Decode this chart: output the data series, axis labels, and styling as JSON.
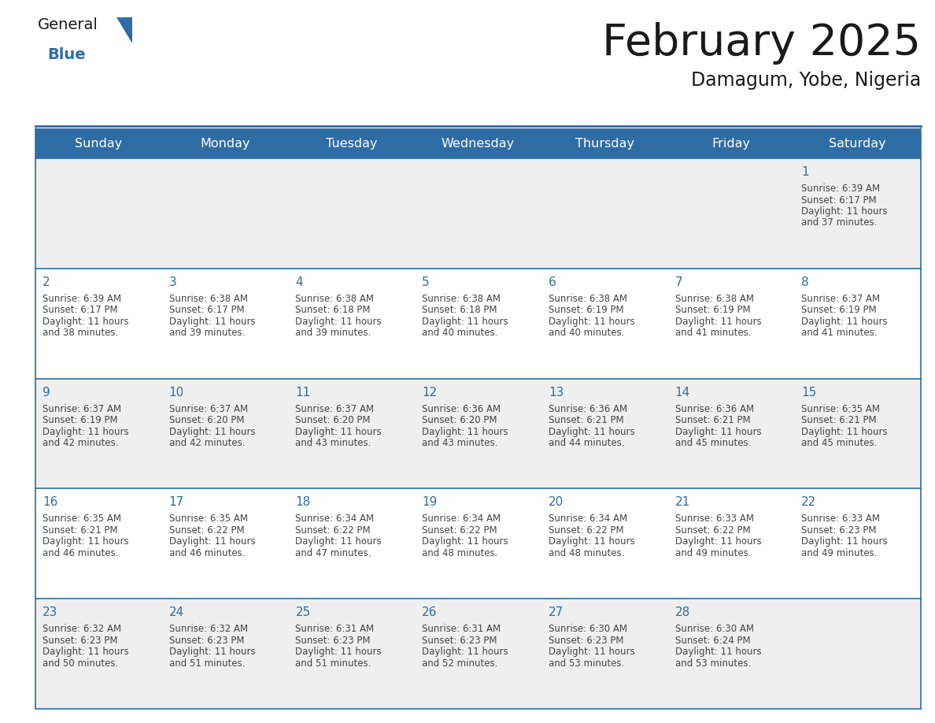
{
  "title": "February 2025",
  "subtitle": "Damagum, Yobe, Nigeria",
  "header_bg": "#2E6DA4",
  "header_text_color": "#FFFFFF",
  "cell_bg_light": "#EFEFEF",
  "cell_bg_white": "#FFFFFF",
  "day_num_color": "#2E6DA4",
  "info_text_color": "#444444",
  "border_color": "#2E6DA4",
  "days_of_week": [
    "Sunday",
    "Monday",
    "Tuesday",
    "Wednesday",
    "Thursday",
    "Friday",
    "Saturday"
  ],
  "title_color": "#1A1A1A",
  "subtitle_color": "#1A1A1A",
  "logo_general_color": "#1A1A1A",
  "logo_blue_color": "#2E6DA4",
  "weeks": [
    [
      null,
      null,
      null,
      null,
      null,
      null,
      {
        "day": 1,
        "sunrise": "6:39 AM",
        "sunset": "6:17 PM",
        "daylight": "11 hours and 37 minutes."
      }
    ],
    [
      {
        "day": 2,
        "sunrise": "6:39 AM",
        "sunset": "6:17 PM",
        "daylight": "11 hours and 38 minutes."
      },
      {
        "day": 3,
        "sunrise": "6:38 AM",
        "sunset": "6:17 PM",
        "daylight": "11 hours and 39 minutes."
      },
      {
        "day": 4,
        "sunrise": "6:38 AM",
        "sunset": "6:18 PM",
        "daylight": "11 hours and 39 minutes."
      },
      {
        "day": 5,
        "sunrise": "6:38 AM",
        "sunset": "6:18 PM",
        "daylight": "11 hours and 40 minutes."
      },
      {
        "day": 6,
        "sunrise": "6:38 AM",
        "sunset": "6:19 PM",
        "daylight": "11 hours and 40 minutes."
      },
      {
        "day": 7,
        "sunrise": "6:38 AM",
        "sunset": "6:19 PM",
        "daylight": "11 hours and 41 minutes."
      },
      {
        "day": 8,
        "sunrise": "6:37 AM",
        "sunset": "6:19 PM",
        "daylight": "11 hours and 41 minutes."
      }
    ],
    [
      {
        "day": 9,
        "sunrise": "6:37 AM",
        "sunset": "6:19 PM",
        "daylight": "11 hours and 42 minutes."
      },
      {
        "day": 10,
        "sunrise": "6:37 AM",
        "sunset": "6:20 PM",
        "daylight": "11 hours and 42 minutes."
      },
      {
        "day": 11,
        "sunrise": "6:37 AM",
        "sunset": "6:20 PM",
        "daylight": "11 hours and 43 minutes."
      },
      {
        "day": 12,
        "sunrise": "6:36 AM",
        "sunset": "6:20 PM",
        "daylight": "11 hours and 43 minutes."
      },
      {
        "day": 13,
        "sunrise": "6:36 AM",
        "sunset": "6:21 PM",
        "daylight": "11 hours and 44 minutes."
      },
      {
        "day": 14,
        "sunrise": "6:36 AM",
        "sunset": "6:21 PM",
        "daylight": "11 hours and 45 minutes."
      },
      {
        "day": 15,
        "sunrise": "6:35 AM",
        "sunset": "6:21 PM",
        "daylight": "11 hours and 45 minutes."
      }
    ],
    [
      {
        "day": 16,
        "sunrise": "6:35 AM",
        "sunset": "6:21 PM",
        "daylight": "11 hours and 46 minutes."
      },
      {
        "day": 17,
        "sunrise": "6:35 AM",
        "sunset": "6:22 PM",
        "daylight": "11 hours and 46 minutes."
      },
      {
        "day": 18,
        "sunrise": "6:34 AM",
        "sunset": "6:22 PM",
        "daylight": "11 hours and 47 minutes."
      },
      {
        "day": 19,
        "sunrise": "6:34 AM",
        "sunset": "6:22 PM",
        "daylight": "11 hours and 48 minutes."
      },
      {
        "day": 20,
        "sunrise": "6:34 AM",
        "sunset": "6:22 PM",
        "daylight": "11 hours and 48 minutes."
      },
      {
        "day": 21,
        "sunrise": "6:33 AM",
        "sunset": "6:22 PM",
        "daylight": "11 hours and 49 minutes."
      },
      {
        "day": 22,
        "sunrise": "6:33 AM",
        "sunset": "6:23 PM",
        "daylight": "11 hours and 49 minutes."
      }
    ],
    [
      {
        "day": 23,
        "sunrise": "6:32 AM",
        "sunset": "6:23 PM",
        "daylight": "11 hours and 50 minutes."
      },
      {
        "day": 24,
        "sunrise": "6:32 AM",
        "sunset": "6:23 PM",
        "daylight": "11 hours and 51 minutes."
      },
      {
        "day": 25,
        "sunrise": "6:31 AM",
        "sunset": "6:23 PM",
        "daylight": "11 hours and 51 minutes."
      },
      {
        "day": 26,
        "sunrise": "6:31 AM",
        "sunset": "6:23 PM",
        "daylight": "11 hours and 52 minutes."
      },
      {
        "day": 27,
        "sunrise": "6:30 AM",
        "sunset": "6:23 PM",
        "daylight": "11 hours and 53 minutes."
      },
      {
        "day": 28,
        "sunrise": "6:30 AM",
        "sunset": "6:24 PM",
        "daylight": "11 hours and 53 minutes."
      },
      null
    ]
  ]
}
